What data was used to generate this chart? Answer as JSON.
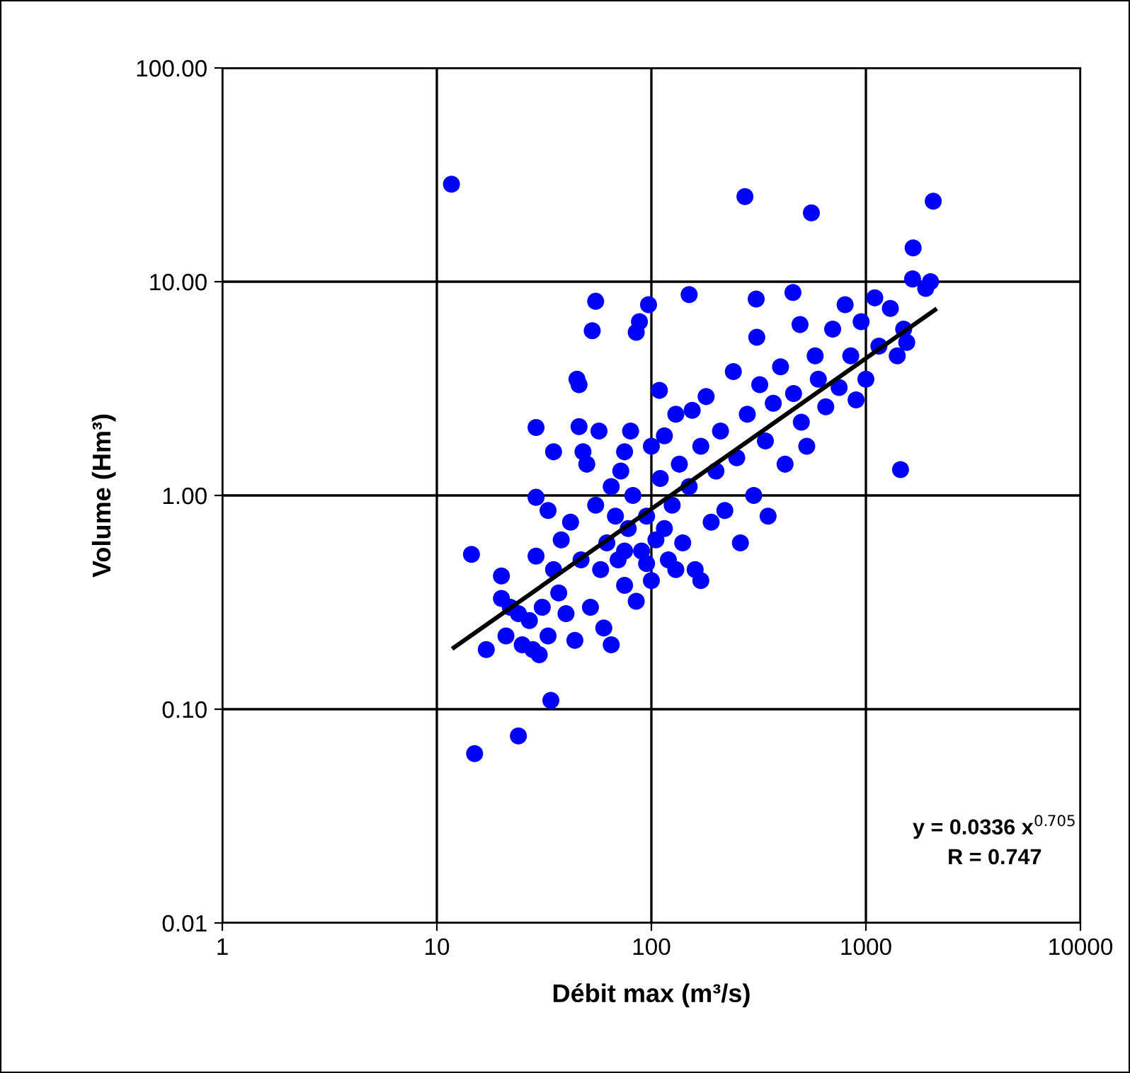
{
  "chart_data": {
    "type": "scatter",
    "xlabel": "Débit max (m³/s)",
    "ylabel": "Volume (Hm³)",
    "log": "xy",
    "grid": true,
    "xlim": [
      1,
      10000
    ],
    "xticks": [
      1,
      10,
      100,
      1000,
      10000
    ],
    "ylim": [
      0.01,
      100
    ],
    "yticks": [
      {
        "value": 0.01,
        "label": "0.01"
      },
      {
        "value": 0.1,
        "label": "0.10"
      },
      {
        "value": 1,
        "label": "1.00"
      },
      {
        "value": 10,
        "label": "10.00"
      },
      {
        "value": 100,
        "label": "100.00"
      }
    ],
    "annotations": [
      "y = 0.0336 x$^{0.705}$\nR = 0.747"
    ],
    "series": [
      {
        "marker": "circle",
        "color": "#0000ff",
        "x": [
          11.7,
          14.5,
          15,
          17,
          20,
          20,
          21,
          22,
          24,
          24,
          25,
          27,
          28,
          29,
          29,
          29,
          30,
          31,
          33,
          33,
          34,
          35,
          35,
          37,
          38,
          40,
          42,
          44,
          45,
          46,
          46,
          47,
          48,
          50,
          52,
          55,
          53,
          55,
          57,
          58,
          60,
          62,
          65,
          65,
          68,
          70,
          72,
          75,
          75,
          78,
          80,
          82,
          85,
          85,
          88,
          90,
          95,
          97,
          100,
          100,
          105,
          109,
          110,
          115,
          120,
          125,
          130,
          135,
          140,
          150,
          150,
          155,
          160,
          170,
          180,
          190,
          200,
          210,
          220,
          241,
          250,
          260,
          273,
          280,
          300,
          308,
          310,
          320,
          340,
          350,
          370,
          400,
          420,
          457,
          460,
          493,
          500,
          530,
          557,
          580,
          600,
          650,
          700,
          750,
          800,
          850,
          900,
          950,
          1000,
          1100,
          1150,
          1300,
          1400,
          1450,
          1500,
          1550,
          1660,
          1650,
          1900,
          2000,
          2060,
          130,
          170,
          115,
          95,
          75
        ],
        "values": [
          28.6,
          0.53,
          0.062,
          0.19,
          0.42,
          0.33,
          0.22,
          0.3,
          0.075,
          0.28,
          0.2,
          0.26,
          0.19,
          0.98,
          0.52,
          2.08,
          0.18,
          0.3,
          0.22,
          0.85,
          0.11,
          0.45,
          1.6,
          0.35,
          0.62,
          0.28,
          0.75,
          0.21,
          3.5,
          3.3,
          2.1,
          0.5,
          1.6,
          1.4,
          0.3,
          8.1,
          5.9,
          0.9,
          2.0,
          0.45,
          0.24,
          0.6,
          0.2,
          1.1,
          0.8,
          0.5,
          1.3,
          1.6,
          0.38,
          0.7,
          2.0,
          1.0,
          0.32,
          5.8,
          6.5,
          0.55,
          0.8,
          7.8,
          1.7,
          0.4,
          0.62,
          3.1,
          1.2,
          1.9,
          0.5,
          0.9,
          2.4,
          1.4,
          0.6,
          8.7,
          1.1,
          2.5,
          0.45,
          1.7,
          2.9,
          0.75,
          1.3,
          2.0,
          0.85,
          3.8,
          1.5,
          0.6,
          25,
          2.4,
          1.0,
          8.3,
          5.5,
          3.3,
          1.8,
          0.8,
          2.7,
          4.0,
          1.4,
          8.9,
          3.0,
          6.3,
          2.2,
          1.7,
          21,
          4.5,
          3.5,
          2.6,
          6.0,
          3.2,
          7.8,
          4.5,
          2.8,
          6.5,
          3.5,
          8.4,
          5.0,
          7.5,
          4.5,
          1.32,
          6.0,
          5.2,
          14.4,
          10.3,
          9.3,
          10,
          23.8,
          0.45,
          0.4,
          0.7,
          0.48,
          0.55
        ]
      },
      {
        "type": "line",
        "marker": "none",
        "color": "#000000",
        "x": [
          12,
          2100
        ],
        "values": [
          0.194,
          7.39
        ]
      }
    ]
  }
}
